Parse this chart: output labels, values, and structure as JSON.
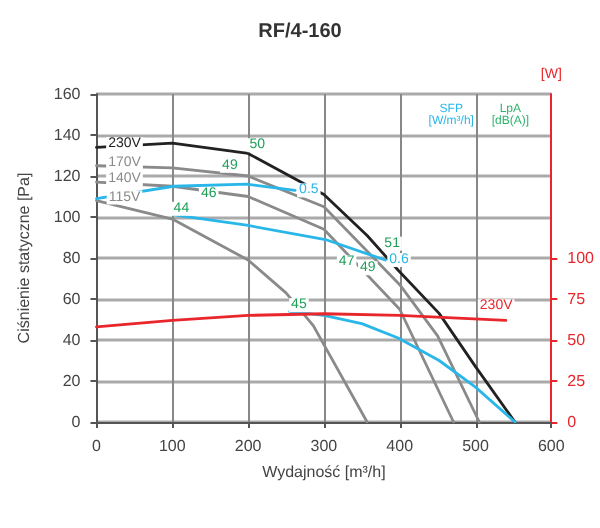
{
  "chart_data": {
    "type": "line",
    "title": "RF/4-160",
    "xlabel": "Wydajność [m³/h]",
    "ylabel": "Ciśnienie statyczne [Pa]",
    "y2label": "[W]",
    "xlim": [
      0,
      600
    ],
    "xticks": [
      0,
      100,
      200,
      300,
      400,
      500,
      600
    ],
    "ylim": [
      0,
      160
    ],
    "yticks": [
      0,
      20,
      40,
      60,
      80,
      100,
      120,
      140,
      160
    ],
    "y2lim": [
      0,
      200
    ],
    "y2ticks": [
      0,
      25,
      50,
      75,
      100
    ],
    "grid": true,
    "legend": false,
    "marker": "none",
    "line_style": "solid",
    "series": [
      {
        "name": "230V",
        "color": "#222222",
        "x": [
          0,
          100,
          200,
          300,
          357,
          398,
          452,
          500,
          552
        ],
        "values": [
          134,
          136,
          131,
          111,
          91,
          74,
          53,
          27,
          0
        ]
      },
      {
        "name": "170V",
        "color": "#8a8a8a",
        "x": [
          0,
          100,
          200,
          300,
          400,
          450,
          505
        ],
        "values": [
          125,
          124,
          120,
          105,
          67,
          42,
          0
        ]
      },
      {
        "name": "140V",
        "color": "#8a8a8a",
        "x": [
          0,
          100,
          200,
          300,
          400,
          471
        ],
        "values": [
          117,
          115,
          110,
          94,
          55,
          0
        ]
      },
      {
        "name": "115V",
        "color": "#8a8a8a",
        "x": [
          0,
          100,
          200,
          250,
          286,
          357
        ],
        "values": [
          108,
          99,
          79,
          63,
          47,
          0
        ]
      },
      {
        "name": "0.5",
        "color": "#29b6e8",
        "x": [
          0,
          102,
          198,
          262
        ],
        "values": [
          109,
          115,
          116,
          113
        ]
      },
      {
        "name": "0.6",
        "color": "#29b6e8",
        "x": [
          102,
          198,
          302,
          381
        ],
        "values": [
          101,
          96,
          89,
          79
        ]
      },
      {
        "color": "#29b6e8",
        "x": [
          255,
          300,
          350,
          398,
          452,
          500,
          552
        ],
        "values": [
          54,
          52,
          48,
          41,
          30,
          17,
          0
        ]
      },
      {
        "name": "230V",
        "color": "#e8262b",
        "axis": "y2",
        "x": [
          0,
          100,
          200,
          300,
          400,
          540
        ],
        "values": [
          58,
          62,
          65,
          66,
          65,
          62
        ]
      }
    ],
    "annotations": [
      "SFP [W/m³/h]",
      "LpA [dB(A)]",
      {
        "text": "50",
        "x": 212,
        "y": 135
      },
      {
        "text": "49",
        "x": 176,
        "y": 125
      },
      {
        "text": "46",
        "x": 148,
        "y": 111
      },
      {
        "text": "44",
        "x": 112,
        "y": 104
      },
      {
        "text": "51",
        "x": 390,
        "y": 87
      },
      {
        "text": "49",
        "x": 358,
        "y": 75
      },
      {
        "text": "47",
        "x": 330,
        "y": 78
      },
      {
        "text": "45",
        "x": 267,
        "y": 57
      }
    ]
  }
}
